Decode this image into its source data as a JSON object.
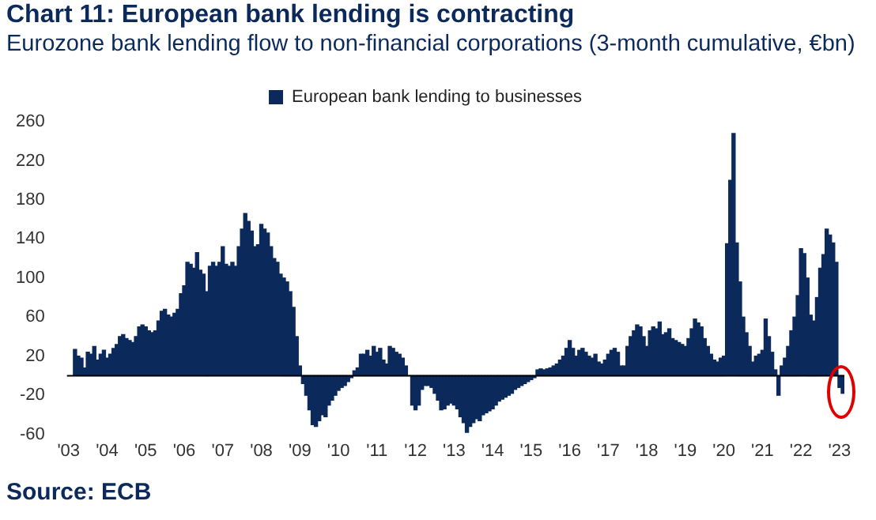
{
  "chart_data": {
    "type": "bar",
    "title": "Chart 11: European bank lending is contracting",
    "subtitle": "Eurozone bank lending flow to non-financial corporations (3-month cumulative, €bn)",
    "categories": [
      "'03",
      null,
      null,
      null,
      null,
      null,
      null,
      null,
      null,
      null,
      null,
      null,
      "'04",
      null,
      null,
      null,
      null,
      null,
      null,
      null,
      null,
      null,
      null,
      null,
      "'05",
      null,
      null,
      null,
      null,
      null,
      null,
      null,
      null,
      null,
      null,
      null,
      "'06",
      null,
      null,
      null,
      null,
      null,
      null,
      null,
      null,
      null,
      null,
      null,
      "'07",
      null,
      null,
      null,
      null,
      null,
      null,
      null,
      null,
      null,
      null,
      null,
      "'08",
      null,
      null,
      null,
      null,
      null,
      null,
      null,
      null,
      null,
      null,
      null,
      "'09",
      null,
      null,
      null,
      null,
      null,
      null,
      null,
      null,
      null,
      null,
      null,
      "'10",
      null,
      null,
      null,
      null,
      null,
      null,
      null,
      null,
      null,
      null,
      null,
      "'11",
      null,
      null,
      null,
      null,
      null,
      null,
      null,
      null,
      null,
      null,
      null,
      "'12",
      null,
      null,
      null,
      null,
      null,
      null,
      null,
      null,
      null,
      null,
      null,
      "'13",
      null,
      null,
      null,
      null,
      null,
      null,
      null,
      null,
      null,
      null,
      null,
      "'14",
      null,
      null,
      null,
      null,
      null,
      null,
      null,
      null,
      null,
      null,
      null,
      "'15",
      null,
      null,
      null,
      null,
      null,
      null,
      null,
      null,
      null,
      null,
      null,
      "'16",
      null,
      null,
      null,
      null,
      null,
      null,
      null,
      null,
      null,
      null,
      null,
      "'17",
      null,
      null,
      null,
      null,
      null,
      null,
      null,
      null,
      null,
      null,
      null,
      "'18",
      null,
      null,
      null,
      null,
      null,
      null,
      null,
      null,
      null,
      null,
      null,
      "'19",
      null,
      null,
      null,
      null,
      null,
      null,
      null,
      null,
      null,
      null,
      null,
      "'20",
      null,
      null,
      null,
      null,
      null,
      null,
      null,
      null,
      null,
      null,
      null,
      "'21",
      null,
      null,
      null,
      null,
      null,
      null,
      null,
      null,
      null,
      null,
      null,
      "'22",
      null,
      null,
      null,
      null,
      null,
      null,
      null,
      null,
      null,
      null,
      null,
      "'23",
      null
    ],
    "series": [
      {
        "name": "European bank lending to businesses",
        "color": "#0b2a5b",
        "values": [
          null,
          null,
          27,
          20,
          18,
          8,
          24,
          22,
          30,
          16,
          22,
          26,
          18,
          22,
          28,
          32,
          40,
          42,
          38,
          36,
          34,
          40,
          50,
          52,
          50,
          46,
          44,
          46,
          56,
          66,
          68,
          62,
          60,
          64,
          68,
          84,
          92,
          116,
          114,
          110,
          126,
          108,
          104,
          86,
          112,
          116,
          112,
          116,
          132,
          114,
          112,
          116,
          112,
          132,
          150,
          166,
          158,
          148,
          132,
          134,
          155,
          150,
          146,
          132,
          120,
          116,
          104,
          100,
          96,
          86,
          70,
          40,
          10,
          -8,
          -20,
          -35,
          -50,
          -52,
          -46,
          -40,
          -42,
          -30,
          -25,
          -20,
          -15,
          -12,
          -10,
          -6,
          -2,
          5,
          8,
          22,
          22,
          26,
          20,
          30,
          24,
          28,
          16,
          12,
          30,
          28,
          24,
          22,
          18,
          10,
          0,
          -30,
          -35,
          -30,
          -14,
          -10,
          -10,
          -12,
          -18,
          -25,
          -35,
          -34,
          -30,
          -28,
          -30,
          -34,
          -42,
          -48,
          -58,
          -52,
          -48,
          -44,
          -46,
          -40,
          -38,
          -36,
          -34,
          -30,
          -26,
          -24,
          -22,
          -20,
          -18,
          -14,
          -12,
          -10,
          -8,
          -6,
          -4,
          -2,
          6,
          7,
          6,
          7,
          8,
          10,
          12,
          16,
          20,
          28,
          36,
          28,
          20,
          26,
          28,
          24,
          20,
          18,
          22,
          14,
          12,
          16,
          22,
          26,
          28,
          24,
          10,
          10,
          30,
          40,
          46,
          52,
          50,
          40,
          30,
          46,
          50,
          48,
          55,
          42,
          44,
          48,
          38,
          36,
          34,
          32,
          30,
          38,
          48,
          58,
          54,
          50,
          38,
          30,
          22,
          16,
          14,
          18,
          20,
          135,
          200,
          248,
          136,
          96,
          60,
          44,
          30,
          14,
          20,
          22,
          26,
          58,
          40,
          24,
          6,
          -20,
          10,
          18,
          30,
          46,
          60,
          82,
          130,
          125,
          100,
          62,
          56,
          80,
          110,
          124,
          150,
          144,
          136,
          116,
          -12,
          -18
        ]
      }
    ],
    "ylim": [
      -60,
      260
    ],
    "yticks": [
      -60,
      -20,
      20,
      60,
      100,
      140,
      180,
      220,
      260
    ],
    "grid": false,
    "legend": "top",
    "annotations": [
      "Source: ECB"
    ]
  }
}
